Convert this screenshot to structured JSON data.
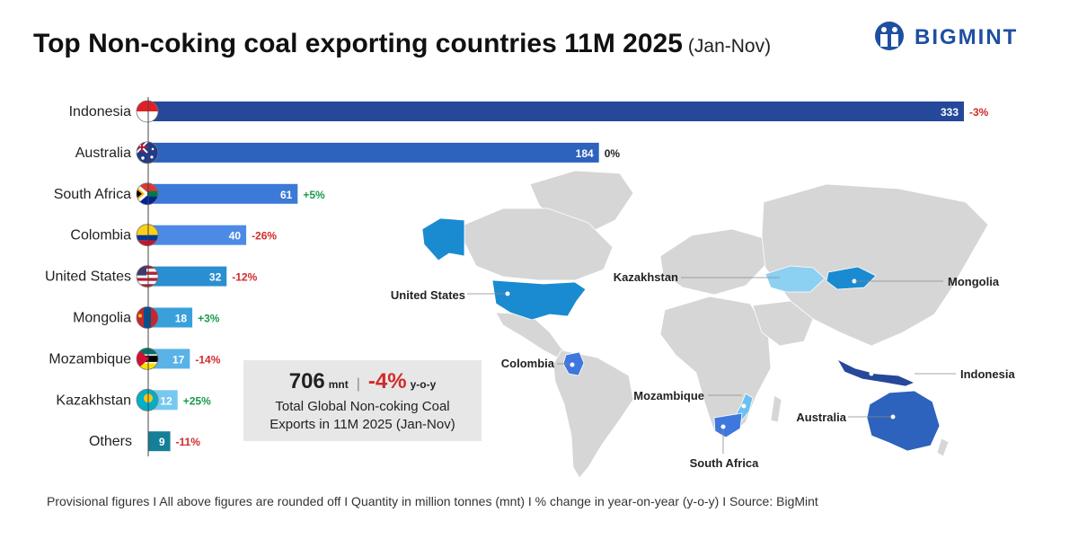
{
  "title": {
    "main": "Top Non-coking coal exporting countries 11M 2025",
    "period": "(Jan-Nov)"
  },
  "brand": {
    "name": "BIGMINT",
    "logo_icon": "bigmint-logo-icon"
  },
  "chart_data": {
    "type": "bar",
    "orientation": "horizontal",
    "title": "Top Non-coking coal exporting countries 11M 2025 (Jan-Nov)",
    "unit": "mnt",
    "xlim": [
      0,
      340
    ],
    "grid": false,
    "categories": [
      "Indonesia",
      "Australia",
      "South Africa",
      "Colombia",
      "United States",
      "Mongolia",
      "Mozambique",
      "Kazakhstan",
      "Others"
    ],
    "values": [
      333,
      184,
      61,
      40,
      32,
      18,
      17,
      12,
      9
    ],
    "changes": [
      "-3%",
      "0%",
      "+5%",
      "-26%",
      "-12%",
      "+3%",
      "-14%",
      "+25%",
      "-11%"
    ],
    "bar_colors": [
      "#26489b",
      "#2d62bd",
      "#3b7ad8",
      "#4d8ae6",
      "#2a8fd0",
      "#3aa0dc",
      "#5ab3e6",
      "#77c8f0",
      "#167f98"
    ],
    "flag_icons": [
      "flag-indonesia-icon",
      "flag-australia-icon",
      "flag-south-africa-icon",
      "flag-colombia-icon",
      "flag-united-states-icon",
      "flag-mongolia-icon",
      "flag-mozambique-icon",
      "flag-kazakhstan-icon",
      ""
    ]
  },
  "colors": {
    "positive": "#1a9a4a",
    "negative": "#d02b2b",
    "neutral": "#222222",
    "map_land": "#d6d6d6"
  },
  "summary": {
    "total": "706",
    "unit": "mnt",
    "separator": "|",
    "change": "-4%",
    "change_label": "y-o-y",
    "desc_line1": "Total Global Non-coking Coal",
    "desc_line2": "Exports in 11M 2025 (Jan-Nov)"
  },
  "map": {
    "labels": [
      "United States",
      "Kazakhstan",
      "Mongolia",
      "Colombia",
      "Mozambique",
      "Indonesia",
      "Australia",
      "South Africa"
    ]
  },
  "footer": "Provisional figures  I  All above figures are rounded off  I  Quantity in million tonnes (mnt)  I  % change in year-on-year (y-o-y)  I  Source: BigMint"
}
